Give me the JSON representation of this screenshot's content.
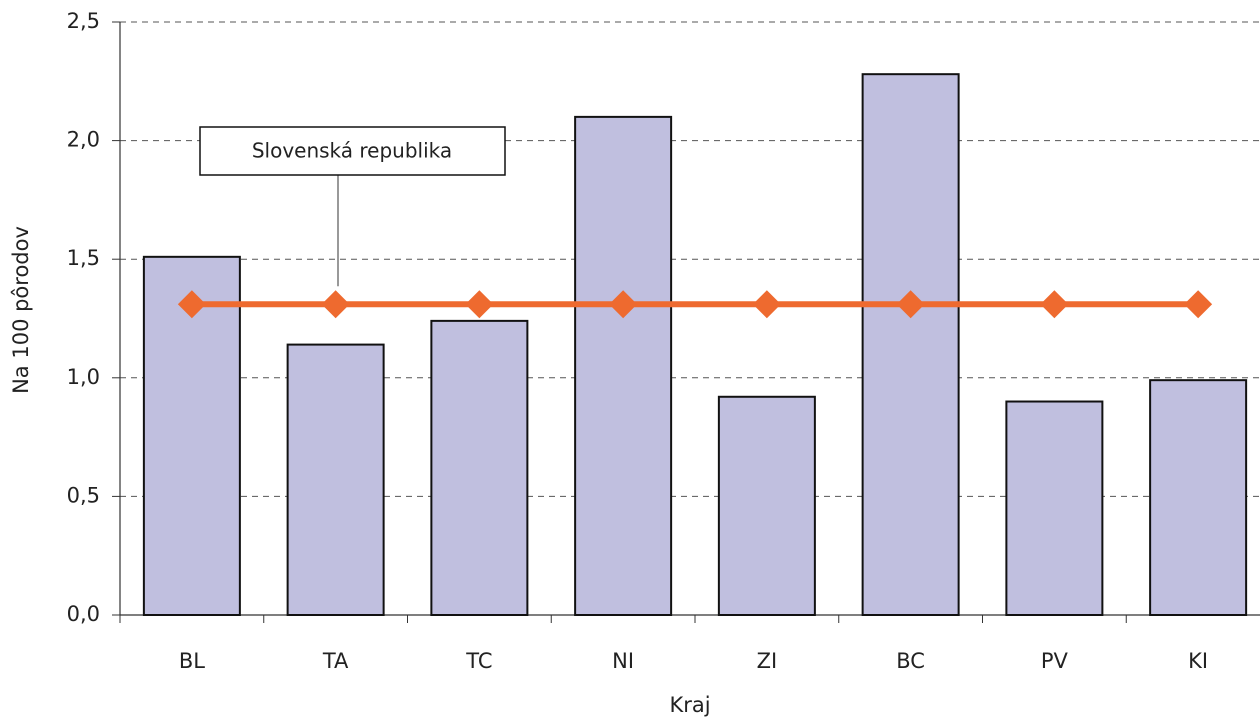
{
  "chart_data": {
    "type": "bar",
    "xlabel": "Kraj",
    "ylabel": "Na 100 pôrodov",
    "categories": [
      "BL",
      "TA",
      "TC",
      "NI",
      "ZI",
      "BC",
      "PV",
      "KI"
    ],
    "series": [
      {
        "type": "bar",
        "color": "#c0bfdf",
        "values": [
          1.51,
          1.14,
          1.24,
          2.1,
          0.92,
          2.28,
          0.9,
          0.99
        ]
      },
      {
        "type": "line",
        "name": "Slovenská republika",
        "color": "#ee6a2f",
        "values": [
          1.31,
          1.31,
          1.31,
          1.31,
          1.31,
          1.31,
          1.31,
          1.31
        ]
      }
    ],
    "ylim": [
      0,
      2.5
    ],
    "yticks": [
      {
        "value": 0,
        "label": "0,0"
      },
      {
        "value": 0.5,
        "label": "0,5"
      },
      {
        "value": 1,
        "label": "1,0"
      },
      {
        "value": 1.5,
        "label": "1,5"
      },
      {
        "value": 2,
        "label": "2,0"
      },
      {
        "value": 2.5,
        "label": "2,5"
      }
    ],
    "grid": true
  }
}
